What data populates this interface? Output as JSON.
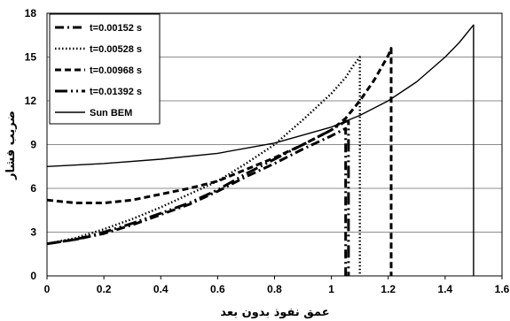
{
  "chart_data": {
    "type": "line",
    "title": "",
    "xlabel": "عمق نفوذ بدون بعد",
    "ylabel": "ضریب فشار",
    "xlim": [
      0,
      1.6
    ],
    "ylim": [
      0,
      18
    ],
    "x_ticks": [
      "0",
      "0.2",
      "0.4",
      "0.6",
      "0.8",
      "1",
      "1.2",
      "1.4",
      "1.6"
    ],
    "y_ticks": [
      "0",
      "3",
      "6",
      "9",
      "12",
      "15",
      "18"
    ],
    "grid": "horizontal",
    "legend_position": "top-left",
    "series": [
      {
        "name": "t=0.00152 s",
        "style": "dash-dot",
        "color": "#000000",
        "x": [
          0.0,
          0.1,
          0.2,
          0.3,
          0.4,
          0.5,
          0.6,
          0.7,
          0.8,
          0.9,
          1.0,
          1.03,
          1.04,
          1.05
        ],
        "y": [
          2.2,
          2.5,
          2.9,
          3.5,
          4.2,
          4.9,
          5.8,
          6.8,
          7.7,
          8.7,
          9.6,
          9.9,
          10.0,
          10.1
        ],
        "drop_x": 1.05
      },
      {
        "name": "t=0.00528 s",
        "style": "dotted",
        "color": "#000000",
        "x": [
          0.0,
          0.1,
          0.2,
          0.3,
          0.4,
          0.5,
          0.6,
          0.7,
          0.8,
          0.9,
          1.0,
          1.05,
          1.08,
          1.1
        ],
        "y": [
          2.2,
          2.6,
          3.2,
          3.9,
          4.7,
          5.6,
          6.5,
          7.7,
          9.0,
          10.7,
          12.5,
          13.6,
          14.5,
          15.0
        ],
        "drop_x": 1.1
      },
      {
        "name": "t=0.00968 s",
        "style": "dashed",
        "color": "#000000",
        "x": [
          0.0,
          0.05,
          0.1,
          0.2,
          0.3,
          0.4,
          0.5,
          0.6,
          0.7,
          0.8,
          0.9,
          1.0,
          1.05,
          1.1,
          1.15,
          1.2,
          1.21
        ],
        "y": [
          5.2,
          5.1,
          5.0,
          5.0,
          5.2,
          5.6,
          6.0,
          6.5,
          7.3,
          8.1,
          9.0,
          10.0,
          10.8,
          12.0,
          13.4,
          15.1,
          15.6
        ],
        "drop_x": 1.21
      },
      {
        "name": "t=0.01392 s",
        "style": "long-dash-dot-dot",
        "color": "#000000",
        "x": [
          0.0,
          0.1,
          0.2,
          0.3,
          0.4,
          0.5,
          0.6,
          0.7,
          0.8,
          0.9,
          1.0,
          1.05
        ],
        "y": [
          2.2,
          2.5,
          3.0,
          3.6,
          4.3,
          5.0,
          5.9,
          7.0,
          8.0,
          9.0,
          10.0,
          10.6
        ],
        "drop_x": 1.06
      },
      {
        "name": "Sun BEM",
        "style": "solid",
        "color": "#000000",
        "x": [
          0.0,
          0.2,
          0.4,
          0.6,
          0.8,
          1.0,
          1.1,
          1.2,
          1.3,
          1.4,
          1.45,
          1.5
        ],
        "y": [
          7.5,
          7.7,
          8.0,
          8.4,
          9.1,
          10.2,
          11.0,
          12.0,
          13.3,
          15.0,
          16.0,
          17.2
        ],
        "drop_x": 1.5
      }
    ]
  }
}
